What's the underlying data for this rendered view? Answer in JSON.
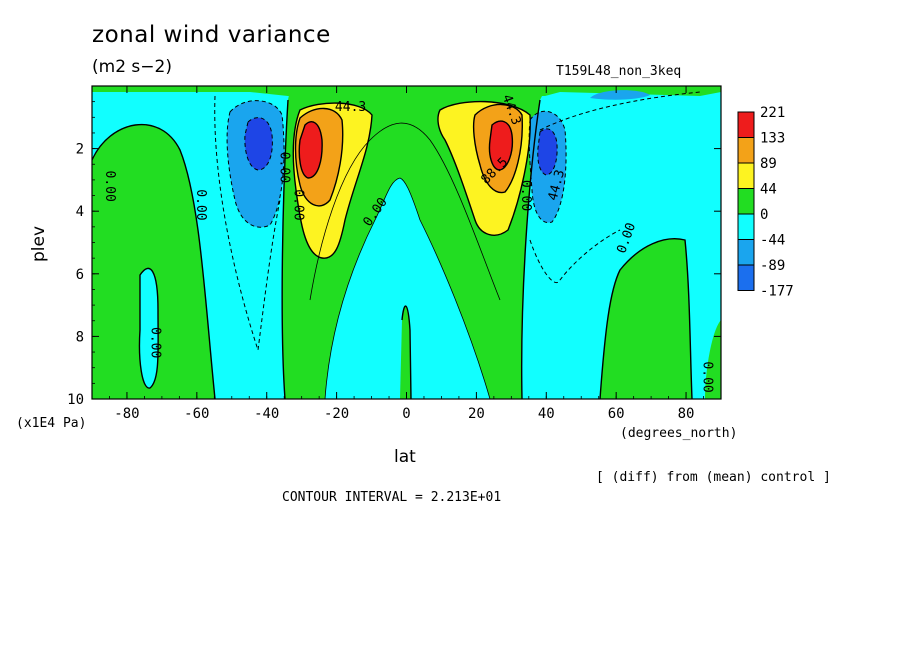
{
  "title": "zonal wind variance",
  "units": "(m2 s−2)",
  "run_label": "T159L48_non_3keq",
  "diff_note": "[ (diff) from (mean) control ]",
  "contour_interval": "CONTOUR INTERVAL = 2.213E+01",
  "colors": {
    "red": "#ee1c1c",
    "orange": "#f3a218",
    "yellow": "#fdf321",
    "green": "#22dd22",
    "cyan": "#11ffff",
    "lightblue": "#1aa5ee",
    "blue": "#1b6fee",
    "darkblue": "#1e45e6"
  },
  "chart_data": {
    "type": "contour",
    "xlabel": "lat",
    "xunits": "(degrees_north)",
    "ylabel": "plev",
    "yunits": "(x1E4 Pa)",
    "xlim": [
      -90,
      90
    ],
    "ylim": [
      10,
      0
    ],
    "xticks": [
      "-80",
      "-60",
      "-40",
      "-20",
      "0",
      "20",
      "40",
      "60",
      "80"
    ],
    "yticks": [
      "2",
      "4",
      "6",
      "8",
      "10"
    ],
    "colorbar": {
      "labels": [
        "221",
        "133",
        "89",
        "44",
        "0",
        "-44",
        "-89",
        "-177"
      ],
      "colors": [
        "#ee1c1c",
        "#f3a218",
        "#fdf321",
        "#22dd22",
        "#11ffff",
        "#1aa5ee",
        "#1b6fee"
      ]
    },
    "contour_labels": [
      "44.3",
      "44.3",
      "88.5",
      "44.3",
      "0.00",
      "0.00",
      "0.00",
      "0.00",
      "0.00",
      "0.00",
      "0.00",
      "0.00",
      "0.00"
    ],
    "features": [
      {
        "name": "SH jet maximum",
        "lat": -28,
        "plev": 2.0,
        "value_min": 221
      },
      {
        "name": "NH jet maximum",
        "lat": 27,
        "plev": 2.0,
        "value_min": 221
      },
      {
        "name": "SH negative minimum",
        "lat": -43,
        "plev": 2.0,
        "value_max": -89
      },
      {
        "name": "NH negative minimum",
        "lat": 41,
        "plev": 2.3,
        "value_max": -89
      }
    ]
  }
}
